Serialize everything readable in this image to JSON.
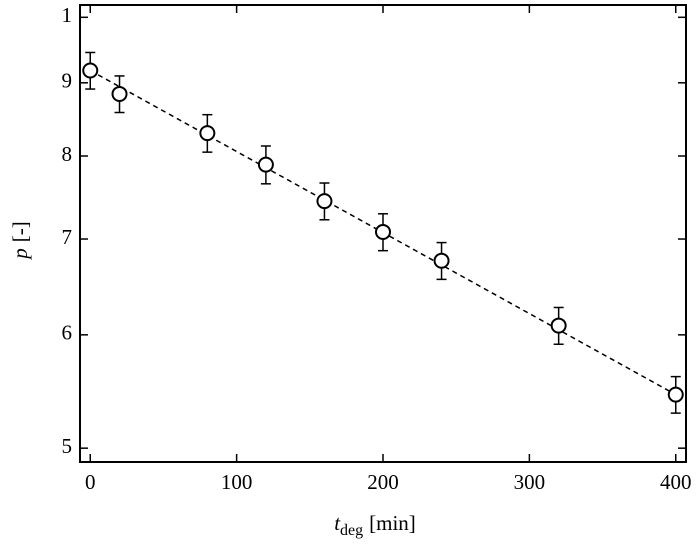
{
  "chart_data": {
    "type": "scatter",
    "x_label": {
      "symbol": "t",
      "subscript": "deg",
      "unit": "[min]"
    },
    "y_label": {
      "symbol": "p",
      "unit": "[-]"
    },
    "log_y": true,
    "xlim": [
      -7,
      407
    ],
    "ylim": [
      4.89,
      10.2
    ],
    "xticks": [
      0,
      100,
      200,
      300,
      400
    ],
    "yticks": [
      5,
      6,
      7,
      8,
      9,
      {
        "value": 10,
        "label": "1"
      }
    ],
    "color": "#000000",
    "x": [
      0,
      20,
      80,
      120,
      160,
      200,
      240,
      320,
      400
    ],
    "values": [
      9.18,
      8.84,
      8.3,
      7.89,
      7.44,
      7.08,
      6.76,
      6.09,
      5.45
    ],
    "errors": [
      0.27,
      0.26,
      0.25,
      0.24,
      0.22,
      0.21,
      0.2,
      0.18,
      0.16
    ],
    "fit": {
      "x": [
        0,
        400
      ],
      "values": [
        9.18,
        5.45
      ]
    }
  }
}
